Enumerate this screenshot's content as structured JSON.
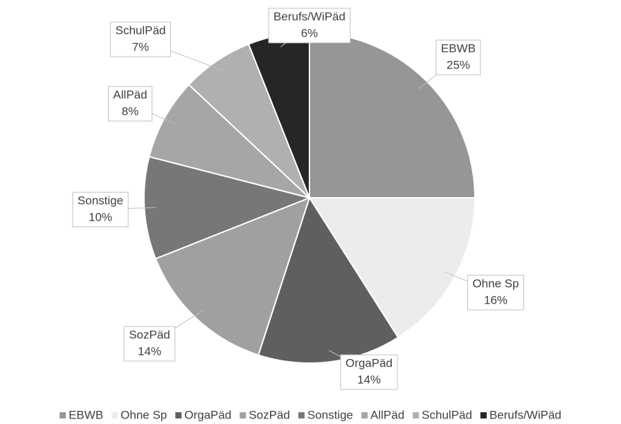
{
  "chart_data": {
    "type": "pie",
    "categories": [
      "EBWB",
      "Ohne Sp",
      "OrgaPäd",
      "SozPäd",
      "Sonstige",
      "AllPäd",
      "SchulPäd",
      "Berufs/WiPäd"
    ],
    "values": [
      25,
      16,
      14,
      14,
      10,
      8,
      7,
      6
    ],
    "value_labels": [
      "25%",
      "16%",
      "14%",
      "14%",
      "10%",
      "8%",
      "7%",
      "6%"
    ],
    "colors": [
      "#969696",
      "#ececec",
      "#5f5f5f",
      "#a0a0a0",
      "#777777",
      "#a6a6a6",
      "#b0b0b0",
      "#262626"
    ],
    "legend": "bottom"
  }
}
